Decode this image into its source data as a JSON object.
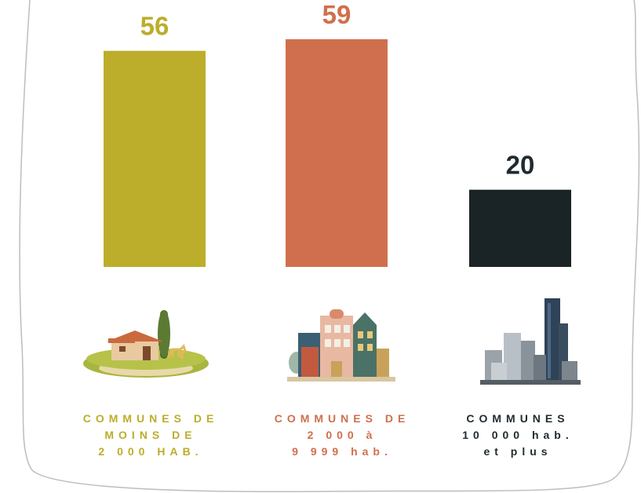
{
  "chart_data": {
    "type": "bar",
    "categories": [
      "COMMUNES DE\nMOINS DE\n2 000 HAB.",
      "COMMUNES DE\n2 000 à\n9 999 hab.",
      "COMMUNES\n10 000 hab.\net plus"
    ],
    "values": [
      56,
      59,
      20
    ],
    "value_labels": [
      "56",
      "59",
      "20"
    ],
    "colors": [
      "#bcad2b",
      "#d06f4d",
      "#1a2326"
    ],
    "label_colors": [
      "#bcad2b",
      "#d06f4d",
      "#1f2b2e"
    ],
    "ylim": [
      0,
      59
    ],
    "grid": false,
    "title": "",
    "xlabel": "",
    "ylabel": ""
  },
  "icons": [
    "farmhouse-icon",
    "townhouses-icon",
    "city-skyline-icon"
  ]
}
